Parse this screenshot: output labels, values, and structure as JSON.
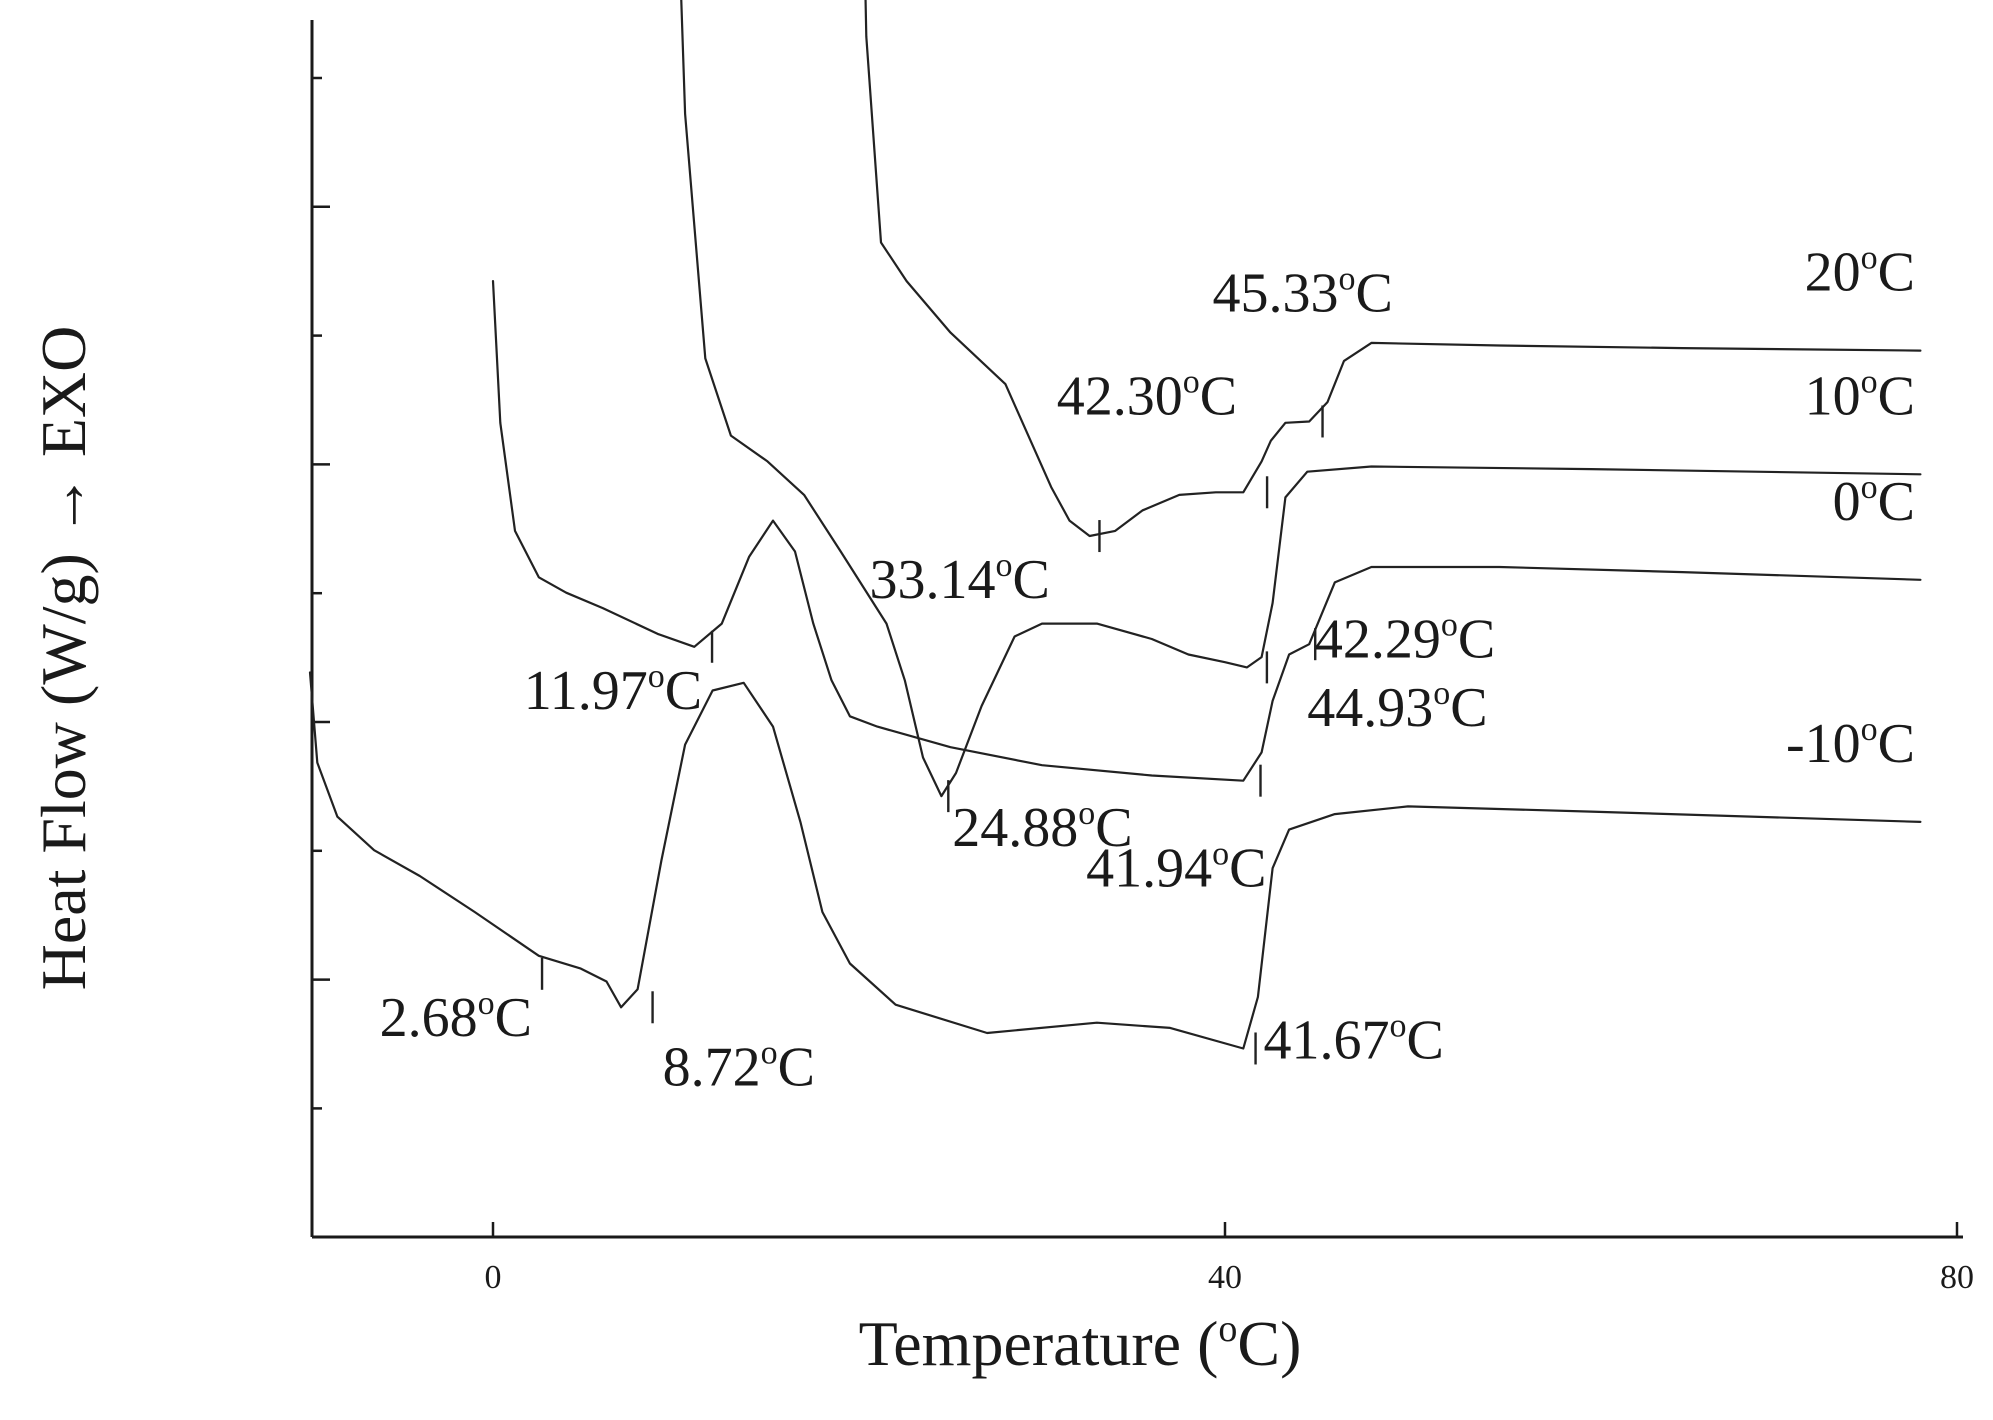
{
  "chart_data": {
    "type": "line",
    "title": "",
    "xlabel": "Temperature (°C)",
    "xlabel_parts": {
      "before": "Temperature (",
      "sup": "o",
      "after": "C)"
    },
    "ylabel": "Heat Flow (W/g) → EXO",
    "xlim": [
      -10,
      80
    ],
    "xticks": [
      0,
      40,
      80
    ],
    "y_ticks_labeled": false,
    "grid": false,
    "series": [
      {
        "name": "20°C",
        "label_parts": {
          "before": "20",
          "sup": "o",
          "after": "C"
        },
        "points": [
          [
            20,
            40
          ],
          [
            20.4,
            26
          ],
          [
            21.2,
            18
          ],
          [
            22.6,
            16.5
          ],
          [
            25,
            14.5
          ],
          [
            28,
            12.5
          ],
          [
            30.5,
            8.5
          ],
          [
            31.5,
            7.2
          ],
          [
            32.6,
            6.6
          ],
          [
            34,
            6.8
          ],
          [
            35.5,
            7.6
          ],
          [
            37.5,
            8.2
          ],
          [
            39.5,
            8.3
          ],
          [
            41,
            8.3
          ],
          [
            42,
            9.5
          ],
          [
            42.5,
            10.3
          ],
          [
            43.3,
            11
          ],
          [
            44.6,
            11.05
          ],
          [
            45.6,
            11.8
          ],
          [
            46.5,
            13.4
          ],
          [
            48,
            14.1
          ],
          [
            55,
            14
          ],
          [
            65,
            13.9
          ],
          [
            78,
            13.8
          ]
        ]
      },
      {
        "name": "10°C",
        "label_parts": {
          "before": "10",
          "sup": "o",
          "after": "C"
        },
        "points": [
          [
            10,
            33.5
          ],
          [
            10.5,
            23
          ],
          [
            11.6,
            13.5
          ],
          [
            13,
            10.5
          ],
          [
            15,
            9.5
          ],
          [
            17,
            8.2
          ],
          [
            19,
            6
          ],
          [
            21.5,
            3.2
          ],
          [
            22.5,
            1
          ],
          [
            23.5,
            -2
          ],
          [
            24.5,
            -3.5
          ],
          [
            25.3,
            -2.6
          ],
          [
            26.7,
            0
          ],
          [
            28.5,
            2.7
          ],
          [
            30,
            3.2
          ],
          [
            33,
            3.2
          ],
          [
            36,
            2.6
          ],
          [
            38,
            2
          ],
          [
            40,
            1.7
          ],
          [
            41.2,
            1.5
          ],
          [
            42,
            1.9
          ],
          [
            42.6,
            4
          ],
          [
            43.3,
            8.1
          ],
          [
            44.5,
            9.1
          ],
          [
            48,
            9.3
          ],
          [
            60,
            9.2
          ],
          [
            78,
            9
          ]
        ]
      },
      {
        "name": "0°C",
        "label_parts": {
          "before": "0",
          "sup": "o",
          "after": "C"
        },
        "points": [
          [
            0,
            16.5
          ],
          [
            0.4,
            11
          ],
          [
            1.2,
            6.8
          ],
          [
            2.5,
            5
          ],
          [
            4,
            4.4
          ],
          [
            6,
            3.8
          ],
          [
            9,
            2.8
          ],
          [
            11,
            2.3
          ],
          [
            12.5,
            3.2
          ],
          [
            14,
            5.8
          ],
          [
            15.3,
            7.2
          ],
          [
            16.5,
            6
          ],
          [
            17.5,
            3.2
          ],
          [
            18.5,
            1
          ],
          [
            19.5,
            -0.4
          ],
          [
            21,
            -0.8
          ],
          [
            25,
            -1.6
          ],
          [
            30,
            -2.3
          ],
          [
            36,
            -2.7
          ],
          [
            41,
            -2.9
          ],
          [
            42,
            -1.8
          ],
          [
            42.6,
            0.2
          ],
          [
            43.5,
            2
          ],
          [
            44.6,
            2.4
          ],
          [
            46,
            4.8
          ],
          [
            48,
            5.4
          ],
          [
            55,
            5.4
          ],
          [
            65,
            5.2
          ],
          [
            78,
            4.9
          ]
        ]
      },
      {
        "name": "-10°C",
        "label_parts": {
          "before": "-10",
          "sup": "o",
          "after": "C"
        },
        "points": [
          [
            -10,
            1.3
          ],
          [
            -9.6,
            -2.2
          ],
          [
            -8.5,
            -4.3
          ],
          [
            -6.5,
            -5.6
          ],
          [
            -4,
            -6.6
          ],
          [
            -1,
            -8
          ],
          [
            2.5,
            -9.7
          ],
          [
            4.8,
            -10.2
          ],
          [
            6.2,
            -10.7
          ],
          [
            7,
            -11.7
          ],
          [
            7.9,
            -11
          ],
          [
            9.2,
            -6
          ],
          [
            10.5,
            -1.5
          ],
          [
            12,
            0.6
          ],
          [
            13.7,
            0.9
          ],
          [
            15.3,
            -0.8
          ],
          [
            16.8,
            -4.5
          ],
          [
            18,
            -8
          ],
          [
            19.5,
            -10
          ],
          [
            22,
            -11.6
          ],
          [
            27,
            -12.7
          ],
          [
            33,
            -12.3
          ],
          [
            37,
            -12.5
          ],
          [
            41,
            -13.3
          ],
          [
            41.8,
            -11.3
          ],
          [
            42.6,
            -6.3
          ],
          [
            43.5,
            -4.8
          ],
          [
            46,
            -4.2
          ],
          [
            50,
            -3.9
          ],
          [
            60,
            -4.1
          ],
          [
            78,
            -4.5
          ]
        ]
      }
    ],
    "annotations": [
      {
        "series": "20°C",
        "x": 45.33,
        "y": 11.05,
        "label_parts": {
          "before": "45.33",
          "sup": "o",
          "after": "C"
        }
      },
      {
        "series": "20°C",
        "x": 42.3,
        "y": 8.3,
        "label_parts": {
          "before": "42.30",
          "sup": "o",
          "after": "C"
        }
      },
      {
        "series": "20°C",
        "x": 33.14,
        "y": 6.6,
        "label_parts": {
          "before": "33.14",
          "sup": "o",
          "after": "C"
        }
      },
      {
        "series": "10°C",
        "x": 42.29,
        "y": 1.5,
        "label_parts": {
          "before": "42.29",
          "sup": "o",
          "after": "C"
        }
      },
      {
        "series": "10°C",
        "x": 24.88,
        "y": -3.5,
        "label_parts": {
          "before": "24.88",
          "sup": "o",
          "after": "C"
        }
      },
      {
        "series": "0°C",
        "x": 44.93,
        "y": 2.4,
        "label_parts": {
          "before": "44.93",
          "sup": "o",
          "after": "C"
        }
      },
      {
        "series": "0°C",
        "x": 11.97,
        "y": 2.3,
        "label_parts": {
          "before": "11.97",
          "sup": "o",
          "after": "C"
        }
      },
      {
        "series": "0°C",
        "x": 41.94,
        "y": -2.9,
        "label_parts": {
          "before": "41.94",
          "sup": "o",
          "after": "C"
        }
      },
      {
        "series": "-10°C",
        "x": 41.67,
        "y": -13.3,
        "label_parts": {
          "before": "41.67",
          "sup": "o",
          "after": "C"
        }
      },
      {
        "series": "-10°C",
        "x": 2.68,
        "y": -10.4,
        "label_parts": {
          "before": "2.68",
          "sup": "o",
          "after": "C"
        }
      },
      {
        "series": "-10°C",
        "x": 8.72,
        "y": -11.7,
        "label_parts": {
          "before": "8.72",
          "sup": "o",
          "after": "C"
        }
      }
    ]
  }
}
